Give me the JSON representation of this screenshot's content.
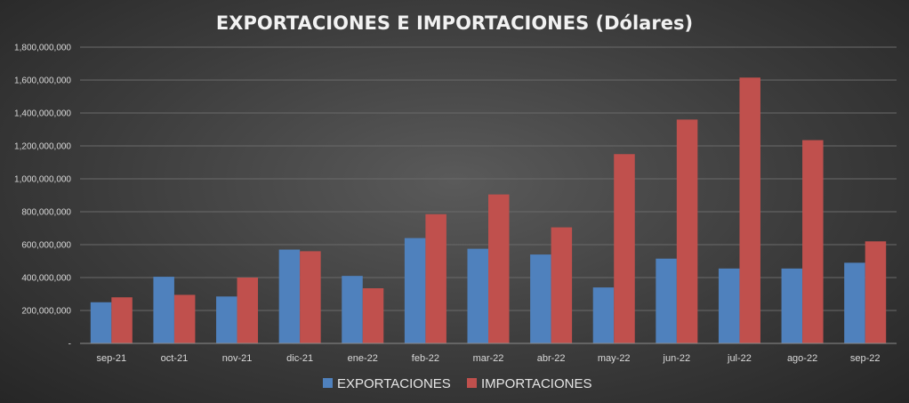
{
  "chart_data": {
    "type": "bar",
    "title": "EXPORTACIONES E IMPORTACIONES (Dólares)",
    "categories": [
      "sep-21",
      "oct-21",
      "nov-21",
      "dic-21",
      "ene-22",
      "feb-22",
      "mar-22",
      "abr-22",
      "may-22",
      "jun-22",
      "jul-22",
      "ago-22",
      "sep-22"
    ],
    "series": [
      {
        "name": "EXPORTACIONES",
        "color": "#4f81bd",
        "values": [
          250000000,
          405000000,
          285000000,
          570000000,
          410000000,
          640000000,
          575000000,
          540000000,
          340000000,
          515000000,
          455000000,
          455000000,
          490000000
        ]
      },
      {
        "name": "IMPORTACIONES",
        "color": "#c0504d",
        "values": [
          280000000,
          295000000,
          400000000,
          560000000,
          335000000,
          785000000,
          905000000,
          705000000,
          1150000000,
          1360000000,
          1615000000,
          1235000000,
          620000000
        ]
      }
    ],
    "ylim": [
      0,
      1800000000
    ],
    "yticks": [
      "-",
      "200,000,000",
      "400,000,000",
      "600,000,000",
      "800,000,000",
      "1,000,000,000",
      "1,200,000,000",
      "1,400,000,000",
      "1,600,000,000",
      "1,800,000,000"
    ],
    "grid": true,
    "legend_position": "bottom"
  }
}
